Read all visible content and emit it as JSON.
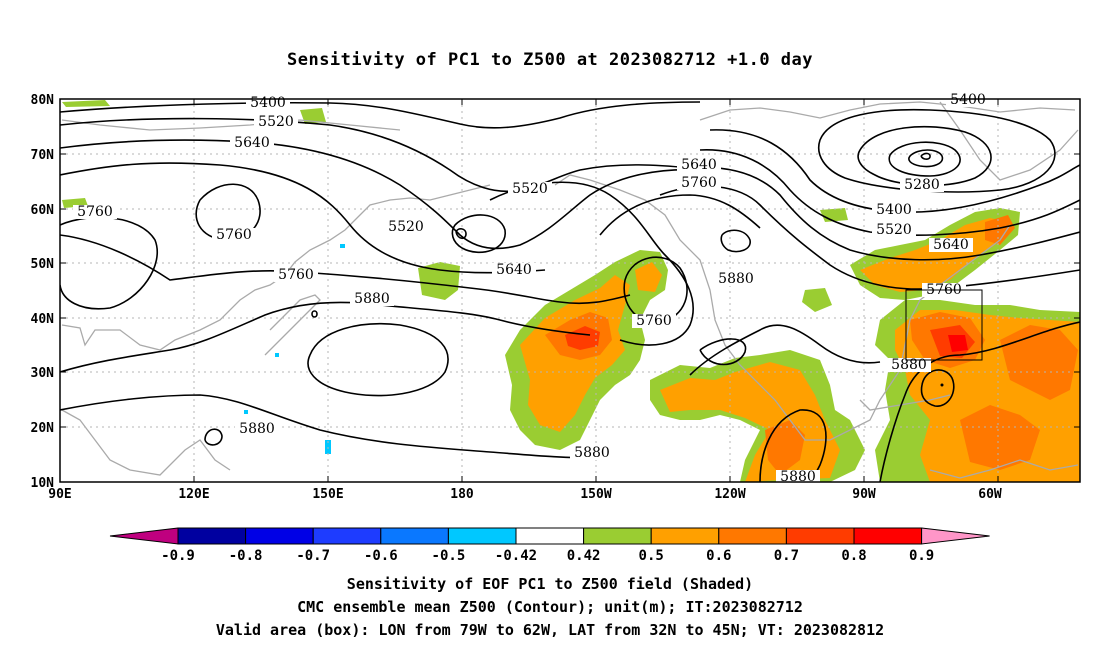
{
  "title": "Sensitivity of PC1 to Z500 at 2023082712 +1.0 day",
  "captions": [
    "Sensitivity of EOF PC1 to Z500 field (Shaded)",
    "CMC ensemble mean Z500 (Contour); unit(m); IT:2023082712",
    "Valid area (box): LON from 79W to 62W, LAT from 32N to 45N; VT: 2023082812"
  ],
  "map": {
    "lon_ticks": [
      "90E",
      "120E",
      "150E",
      "180",
      "150W",
      "120W",
      "90W",
      "60W"
    ],
    "lat_ticks": [
      "80N",
      "70N",
      "60N",
      "50N",
      "40N",
      "30N",
      "20N",
      "10N"
    ],
    "contour_labels": [
      "5400",
      "5520",
      "5640",
      "5760",
      "5400",
      "5520",
      "5880",
      "5760",
      "5760",
      "5520",
      "5640",
      "5760",
      "5880",
      "5640",
      "5760",
      "5880",
      "5880",
      "5280",
      "5400",
      "5520",
      "5640",
      "5760",
      "5880",
      "5880",
      "5760"
    ],
    "valid_box": {
      "lon_min": "79W",
      "lon_max": "62W",
      "lat_min": "32N",
      "lat_max": "45N"
    }
  },
  "colorbar": {
    "labels": [
      "-0.9",
      "-0.8",
      "-0.7",
      "-0.6",
      "-0.5",
      "-0.42",
      "0.42",
      "0.5",
      "0.6",
      "0.7",
      "0.8",
      "0.9"
    ],
    "colors": [
      "#bf007f",
      "#0000a0",
      "#0000e6",
      "#1e3cff",
      "#0a78ff",
      "#00c8ff",
      "#ffffff",
      "#9acd32",
      "#ffa000",
      "#ff7800",
      "#ff3c00",
      "#ff0000",
      "#ff96c8"
    ]
  }
}
